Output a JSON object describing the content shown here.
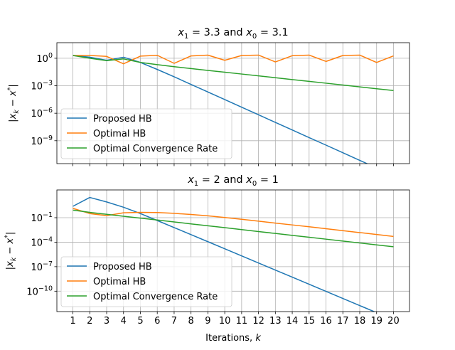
{
  "chart_data": [
    {
      "type": "line",
      "title_parts": [
        "x",
        "1",
        " = 3.3 and ",
        "x",
        "0",
        " = 3.1"
      ],
      "title": "x1 = 3.3 and x0 = 3.1",
      "ylabel": "|x_k - x*|",
      "yscale": "log",
      "ylim_log10": [
        -11.5,
        1.7
      ],
      "yticks": [
        {
          "exp": 0,
          "base": "10",
          "sup": "0"
        },
        {
          "exp": -3,
          "base": "10",
          "sup": "−3"
        },
        {
          "exp": -6,
          "base": "10",
          "sup": "−6"
        },
        {
          "exp": -9,
          "base": "10",
          "sup": "−9"
        }
      ],
      "x": [
        1,
        2,
        3,
        4,
        5,
        6,
        7,
        8,
        9,
        10,
        11,
        12,
        13,
        14,
        15,
        16,
        17,
        18,
        19,
        20
      ],
      "series": [
        {
          "name": "Proposed HB",
          "color": "#1f77b4",
          "values": [
            2.0,
            1.3,
            0.6,
            1.3,
            0.35,
            0.06,
            0.0095,
            0.0014,
            0.00021,
            3.1e-05,
            4.6e-06,
            6.8e-07,
            1e-07,
            1.5e-08,
            2.2e-09,
            3.3e-10,
            4.9e-11,
            7.2e-12,
            1.06e-12,
            1.56e-13
          ]
        },
        {
          "name": "Optimal HB",
          "color": "#ff7f0e",
          "values": [
            2.0,
            2.0,
            1.6,
            0.25,
            1.7,
            2.1,
            0.28,
            1.8,
            2.2,
            0.6,
            2.0,
            2.2,
            0.4,
            1.9,
            2.2,
            0.45,
            2.0,
            2.2,
            0.35,
            1.8
          ]
        },
        {
          "name": "Optimal Convergence Rate",
          "color": "#2ca02c",
          "values": [
            2.0,
            1.0,
            0.55,
            0.85,
            0.35,
            0.2,
            0.12,
            0.075,
            0.047,
            0.03,
            0.019,
            0.012,
            0.0075,
            0.0047,
            0.003,
            0.0019,
            0.0012,
            0.00075,
            0.00047,
            0.0003
          ]
        }
      ],
      "legend_position": "lower-left",
      "xticks_labels_visible": false
    },
    {
      "type": "line",
      "title_parts": [
        "x",
        "1",
        " = 2 and ",
        "x",
        "0",
        " = 1"
      ],
      "title": "x1 = 2 and x0 = 1",
      "ylabel": "|x_k - x*|",
      "xlabel": "Iterations, k",
      "yscale": "log",
      "ylim_log10": [
        -12.5,
        2.4
      ],
      "yticks": [
        {
          "exp": -1,
          "base": "10",
          "sup": "−1"
        },
        {
          "exp": -4,
          "base": "10",
          "sup": "−4"
        },
        {
          "exp": -7,
          "base": "10",
          "sup": "−7"
        },
        {
          "exp": -10,
          "base": "10",
          "sup": "−10"
        }
      ],
      "x": [
        1,
        2,
        3,
        4,
        5,
        6,
        7,
        8,
        9,
        10,
        11,
        12,
        13,
        14,
        15,
        16,
        17,
        18,
        19,
        20
      ],
      "series": [
        {
          "name": "Proposed HB",
          "color": "#1f77b4",
          "values": [
            2.5,
            30.0,
            8.5,
            1.9,
            0.32,
            0.045,
            0.0062,
            0.00085,
            0.000115,
            1.55e-05,
            2.1e-06,
            2.85e-07,
            3.85e-08,
            5.2e-09,
            7e-10,
            9.5e-11,
            1.28e-11,
            1.73e-12,
            2.34e-13,
            3.2e-14
          ]
        },
        {
          "name": "Optimal HB",
          "color": "#ff7f0e",
          "values": [
            1.4,
            0.32,
            0.18,
            0.4,
            0.45,
            0.43,
            0.34,
            0.25,
            0.17,
            0.105,
            0.064,
            0.038,
            0.022,
            0.013,
            0.0077,
            0.0045,
            0.0026,
            0.0015,
            0.00088,
            0.00051
          ]
        },
        {
          "name": "Optimal Convergence Rate",
          "color": "#2ca02c",
          "values": [
            0.85,
            0.45,
            0.26,
            0.15,
            0.088,
            0.052,
            0.03,
            0.0175,
            0.0102,
            0.006,
            0.0035,
            0.002,
            0.00118,
            0.00069,
            0.0004,
            0.000235,
            0.000137,
            8e-05,
            4.7e-05,
            2.75e-05
          ]
        }
      ],
      "legend_position": "lower-left",
      "xticks_labels_visible": true
    }
  ],
  "xlabel_parts": [
    "Iterations, ",
    "k"
  ],
  "xtick_labels": [
    "1",
    "2",
    "3",
    "4",
    "5",
    "6",
    "7",
    "8",
    "9",
    "10",
    "11",
    "12",
    "13",
    "14",
    "15",
    "16",
    "17",
    "18",
    "19",
    "20"
  ]
}
